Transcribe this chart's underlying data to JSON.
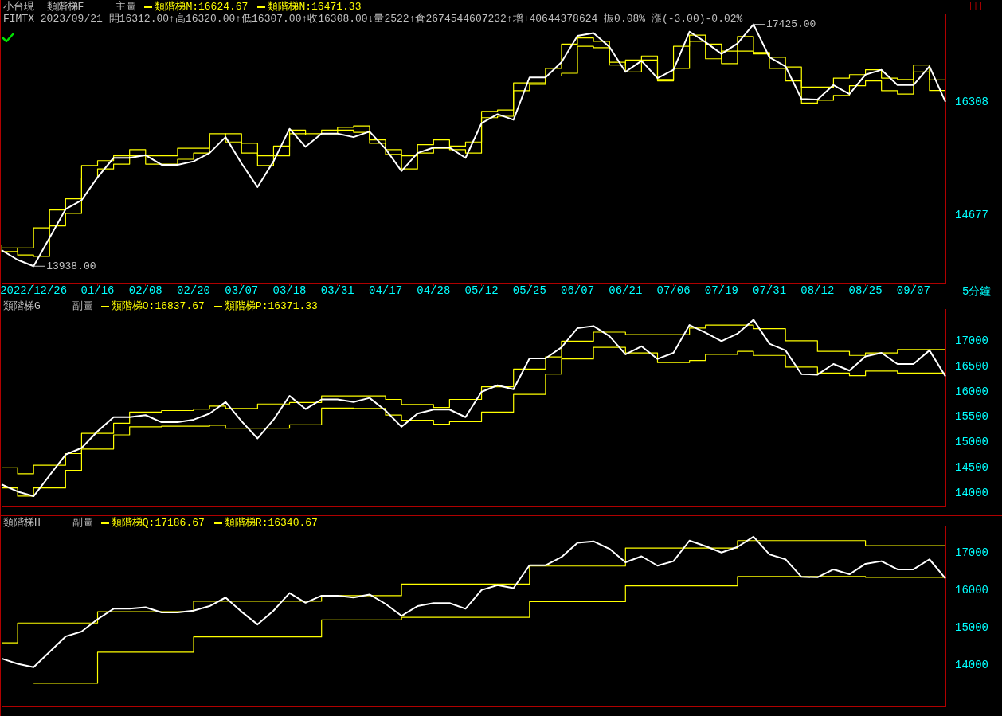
{
  "chart_data": [
    {
      "type": "line",
      "title": "小台現  類階梯F",
      "subtitle": "FIMTX 2023/09/21 開16312.00↑高16320.00↑低16307.00↑收16308.00↓量2522↑倉2674544607232↑增+40644378624 振0.08% 漲(-3.00)-0.02%",
      "legend_title": "主圖",
      "legend": "top left",
      "xlabel": "5分鐘",
      "categories": [
        null,
        null,
        "2022/12/26",
        null,
        null,
        null,
        "01/16",
        null,
        null,
        "02/08",
        null,
        null,
        "02/20",
        null,
        null,
        "03/07",
        null,
        null,
        "03/18",
        null,
        null,
        "03/31",
        null,
        null,
        "04/17",
        null,
        null,
        "04/28",
        null,
        null,
        "05/12",
        null,
        null,
        "05/25",
        null,
        null,
        "06/07",
        null,
        null,
        "06/21",
        null,
        null,
        "07/06",
        null,
        null,
        "07/19",
        null,
        null,
        "07/31",
        null,
        null,
        "08/12",
        null,
        null,
        "08/25",
        null,
        null,
        "09/07",
        null,
        null
      ],
      "ylim": [
        13700,
        17570
      ],
      "yticks": [
        14677,
        16308
      ],
      "annotations": [
        "17425.00",
        "13938.00"
      ],
      "series": [
        {
          "type": "line",
          "color": "#ffffff",
          "values": [
            14170,
            14030,
            13938,
            14350,
            14760,
            14890,
            15220,
            15500,
            15500,
            15540,
            15400,
            15400,
            15450,
            15570,
            15800,
            15420,
            15080,
            15450,
            15920,
            15660,
            15850,
            15850,
            15800,
            15880,
            15630,
            15310,
            15570,
            15650,
            15650,
            15500,
            16000,
            16130,
            16050,
            16660,
            16660,
            16880,
            17260,
            17300,
            17100,
            16740,
            16900,
            16650,
            16770,
            17320,
            17170,
            17000,
            17150,
            17425,
            16950,
            16820,
            16350,
            16340,
            16550,
            16420,
            16700,
            16770,
            16550,
            16550,
            16820,
            16308
          ]
        },
        {
          "type": "step",
          "name": "類階梯M:16624.67",
          "color": "#ffff00",
          "values": [
            14240,
            14150,
            14200,
            14490,
            14750,
            14910,
            15390,
            15460,
            15530,
            15620,
            15530,
            15530,
            15640,
            15640,
            15850,
            15730,
            15570,
            15390,
            15670,
            15900,
            15850,
            15900,
            15940,
            15960,
            15760,
            15620,
            15530,
            15690,
            15760,
            15670,
            15730,
            16170,
            16190,
            16580,
            16580,
            16790,
            17140,
            17230,
            17180,
            16840,
            16910,
            16970,
            16610,
            17110,
            17270,
            16930,
            17040,
            17250,
            17000,
            16950,
            16810,
            16520,
            16520,
            16650,
            16700,
            16770,
            16650,
            16630,
            16840,
            16624.67
          ]
        },
        {
          "type": "step",
          "name": "類階梯N:16471.33",
          "color": "#ffff00",
          "values": [
            14200,
            14200,
            14100,
            14080,
            14520,
            14700,
            15210,
            15340,
            15410,
            15530,
            15410,
            15410,
            15480,
            15570,
            15830,
            15850,
            15710,
            15530,
            15530,
            15850,
            15830,
            15850,
            15900,
            15870,
            15710,
            15550,
            15340,
            15570,
            15640,
            15620,
            15570,
            16080,
            16100,
            16470,
            16560,
            16680,
            16720,
            17110,
            17090,
            16880,
            16740,
            16910,
            16630,
            16790,
            17180,
            17140,
            16860,
            17040,
            17020,
            16790,
            16610,
            16290,
            16330,
            16400,
            16540,
            16610,
            16470,
            16420,
            16740,
            16471.33
          ]
        }
      ]
    },
    {
      "type": "line",
      "title": "類階梯G",
      "legend_title": "副圖",
      "legend": "top left",
      "tick_labels": "y",
      "categories": [
        null,
        null,
        null,
        null,
        null,
        null,
        null,
        null,
        null,
        null,
        null,
        null,
        null,
        null,
        null,
        null,
        null,
        null,
        null,
        null,
        null,
        null,
        null,
        null,
        null,
        null,
        null,
        null,
        null,
        null,
        null,
        null,
        null,
        null,
        null,
        null,
        null,
        null,
        null,
        null,
        null,
        null,
        null,
        null,
        null,
        null,
        null,
        null,
        null,
        null,
        null,
        null,
        null,
        null,
        null,
        null,
        null,
        null,
        null,
        null
      ],
      "ylim": [
        13740,
        17630
      ],
      "yticks": [
        14000,
        14500,
        15000,
        15500,
        16000,
        16500,
        17000
      ],
      "series": [
        {
          "type": "line",
          "color": "#ffffff",
          "values": [
            14170,
            14030,
            13938,
            14350,
            14760,
            14890,
            15220,
            15500,
            15500,
            15540,
            15400,
            15400,
            15450,
            15570,
            15800,
            15420,
            15080,
            15450,
            15920,
            15660,
            15850,
            15850,
            15800,
            15880,
            15630,
            15310,
            15570,
            15650,
            15650,
            15500,
            16000,
            16130,
            16050,
            16660,
            16660,
            16880,
            17260,
            17300,
            17100,
            16740,
            16900,
            16650,
            16770,
            17320,
            17170,
            17000,
            17150,
            17425,
            16950,
            16820,
            16350,
            16340,
            16550,
            16420,
            16700,
            16770,
            16550,
            16550,
            16820,
            16308
          ]
        },
        {
          "type": "step",
          "name": "類階梯O:16837.67",
          "color": "#ffff00",
          "values": [
            14500,
            14500,
            14380,
            14550,
            14550,
            14780,
            15180,
            15180,
            15380,
            15600,
            15600,
            15630,
            15630,
            15660,
            15720,
            15670,
            15670,
            15760,
            15760,
            15790,
            15790,
            15920,
            15920,
            15920,
            15920,
            15850,
            15750,
            15750,
            15690,
            15850,
            15850,
            16100,
            16100,
            16450,
            16450,
            16690,
            17000,
            17000,
            17180,
            17180,
            17130,
            17130,
            17130,
            17130,
            17260,
            17320,
            17320,
            17320,
            17250,
            17250,
            17010,
            17010,
            16800,
            16800,
            16720,
            16770,
            16770,
            16837.67,
            16837.67,
            16837.67
          ]
        },
        {
          "type": "step",
          "name": "類階梯P:16371.33",
          "color": "#ffff00",
          "values": [
            14100,
            14100,
            13940,
            14100,
            14100,
            14450,
            14870,
            14870,
            15150,
            15310,
            15310,
            15320,
            15320,
            15320,
            15340,
            15280,
            15280,
            15280,
            15280,
            15350,
            15350,
            15680,
            15680,
            15670,
            15670,
            15540,
            15440,
            15440,
            15360,
            15410,
            15410,
            15600,
            15600,
            15950,
            15950,
            16350,
            16650,
            16650,
            16880,
            16880,
            16770,
            16770,
            16580,
            16580,
            16620,
            16740,
            16740,
            16800,
            16720,
            16720,
            16490,
            16490,
            16370,
            16370,
            16320,
            16410,
            16410,
            16371.33,
            16371.33,
            16371.33
          ]
        }
      ]
    },
    {
      "type": "line",
      "title": "類階梯H",
      "legend_title": "副圖",
      "legend": "top left",
      "tick_labels": "y",
      "categories": [
        null,
        null,
        null,
        null,
        null,
        null,
        null,
        null,
        null,
        null,
        null,
        null,
        null,
        null,
        null,
        null,
        null,
        null,
        null,
        null,
        null,
        null,
        null,
        null,
        null,
        null,
        null,
        null,
        null,
        null,
        null,
        null,
        null,
        null,
        null,
        null,
        null,
        null,
        null,
        null,
        null,
        null,
        null,
        null,
        null,
        null,
        null,
        null,
        null,
        null,
        null,
        null,
        null,
        null,
        null,
        null,
        null,
        null,
        null,
        null
      ],
      "ylim": [
        12880,
        17710
      ],
      "yticks": [
        14000,
        15000,
        16000,
        17000
      ],
      "series": [
        {
          "type": "line",
          "color": "#ffffff",
          "values": [
            14170,
            14030,
            13938,
            14350,
            14760,
            14890,
            15220,
            15500,
            15500,
            15540,
            15400,
            15400,
            15450,
            15570,
            15800,
            15420,
            15080,
            15450,
            15920,
            15660,
            15850,
            15850,
            15800,
            15880,
            15630,
            15310,
            15570,
            15650,
            15650,
            15500,
            16000,
            16130,
            16050,
            16660,
            16660,
            16880,
            17260,
            17300,
            17100,
            16740,
            16900,
            16650,
            16770,
            17320,
            17170,
            17000,
            17150,
            17425,
            16950,
            16820,
            16350,
            16340,
            16550,
            16420,
            16700,
            16770,
            16550,
            16550,
            16820,
            16308
          ]
        },
        {
          "type": "step",
          "name": "類階梯Q:17186.67",
          "color": "#ffff00",
          "values": [
            14590,
            14590,
            15120,
            15120,
            15120,
            15120,
            15120,
            15420,
            15420,
            15420,
            15420,
            15420,
            15420,
            15700,
            15700,
            15700,
            15700,
            15700,
            15700,
            15700,
            15700,
            15850,
            15850,
            15850,
            15850,
            15850,
            16160,
            16160,
            16160,
            16160,
            16160,
            16160,
            16160,
            16160,
            16640,
            16640,
            16640,
            16640,
            16640,
            16640,
            17120,
            17120,
            17120,
            17120,
            17120,
            17120,
            17120,
            17320,
            17320,
            17320,
            17320,
            17320,
            17320,
            17320,
            17320,
            17186.67,
            17186.67,
            17186.67,
            17186.67,
            17186.67
          ]
        },
        {
          "type": "step",
          "name": "類階梯R:16340.67",
          "color": "#ffff00",
          "values": [
            null,
            null,
            13510,
            13510,
            13510,
            13510,
            13510,
            14340,
            14340,
            14340,
            14340,
            14340,
            14340,
            14750,
            14750,
            14750,
            14750,
            14750,
            14750,
            14750,
            14750,
            15200,
            15200,
            15200,
            15200,
            15200,
            15270,
            15270,
            15270,
            15270,
            15270,
            15270,
            15270,
            15270,
            15690,
            15690,
            15690,
            15690,
            15690,
            15690,
            16110,
            16110,
            16110,
            16110,
            16110,
            16110,
            16110,
            16360,
            16360,
            16360,
            16360,
            16360,
            16360,
            16360,
            16360,
            16340.67,
            16340.67,
            16340.67,
            16340.67,
            16340.67
          ]
        }
      ]
    }
  ]
}
